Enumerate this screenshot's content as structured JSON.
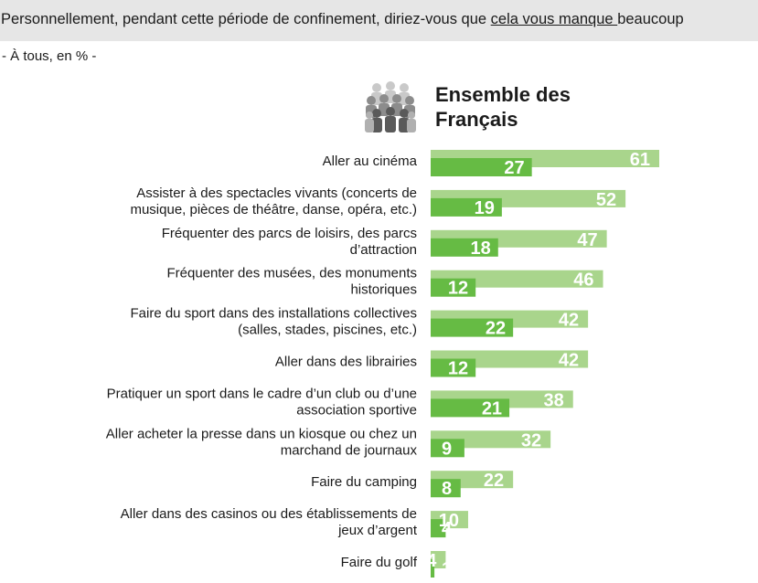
{
  "question": {
    "before": "Personnellement, pendant cette période de confinement, diriez-vous que ",
    "underlined": "cela vous manque ",
    "after": "beaucoup"
  },
  "subtitle": "- À tous, en % -",
  "group": {
    "title_line1": "Ensemble des",
    "title_line2": "Français",
    "icon": "people-group-icon"
  },
  "colors": {
    "header_bg": "#e6e6e6",
    "light_bar": "#a9d58c",
    "dark_bar": "#66bb44",
    "value_text": "#ffffff"
  },
  "chart_data": {
    "type": "bar",
    "orientation": "horizontal",
    "categories": [
      [
        "Aller au cinéma"
      ],
      [
        "Assister à des spectacles vivants (concerts de",
        "musique, pièces de théâtre, danse, opéra, etc.)"
      ],
      [
        "Fréquenter des parcs de loisirs, des parcs",
        "d’attraction"
      ],
      [
        "Fréquenter des musées, des monuments",
        "historiques"
      ],
      [
        "Faire du sport dans des installations collectives",
        "(salles, stades, piscines, etc.)"
      ],
      [
        "Aller dans des librairies"
      ],
      [
        "Pratiquer un sport dans le cadre d’un club ou d’une",
        "association sportive"
      ],
      [
        "Aller acheter la presse dans un kiosque ou chez un",
        "marchand de journaux"
      ],
      [
        "Faire du camping"
      ],
      [
        "Aller dans des casinos ou des établissements de",
        "jeux d’argent"
      ],
      [
        "Faire du golf"
      ]
    ],
    "series": [
      {
        "values": [
          61,
          52,
          47,
          46,
          42,
          42,
          38,
          32,
          22,
          10,
          4
        ]
      },
      {
        "values": [
          27,
          19,
          18,
          12,
          22,
          12,
          21,
          9,
          8,
          4,
          1
        ]
      }
    ],
    "xlim": [
      0,
      61
    ]
  }
}
